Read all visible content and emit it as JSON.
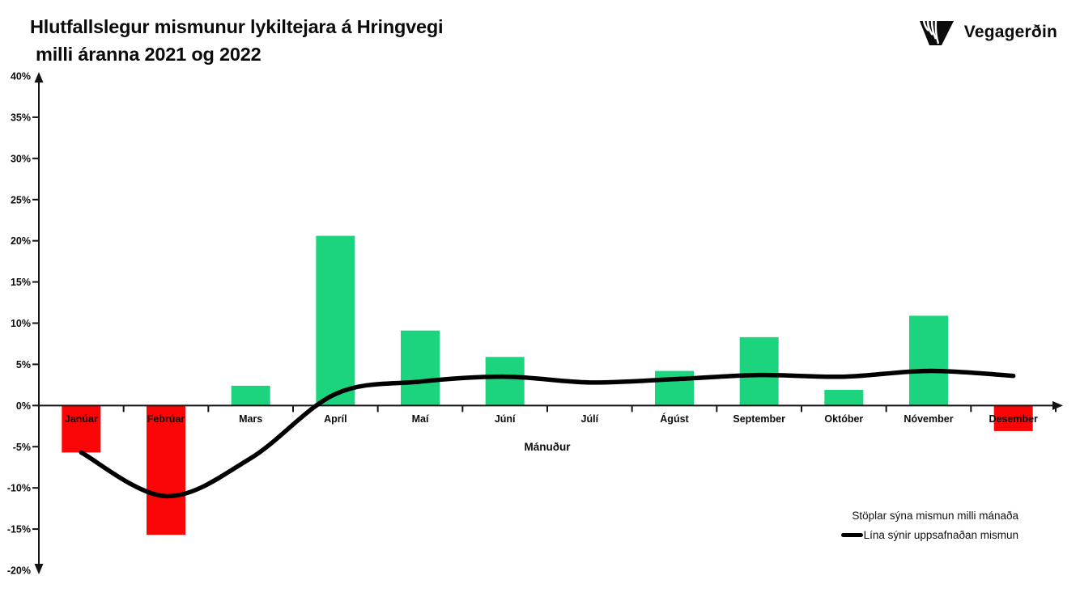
{
  "header": {
    "title_line1": "Hlutfallslegur mismunur lykiltejara á Hringvegi",
    "title_line2": "milli áranna 2021 og 2022",
    "brand": "Vegagerðin"
  },
  "legend": {
    "bars_label": "Stöplar sýna mismun milli mánaða",
    "line_label": "Lína sýnir uppsafnaðan mismun"
  },
  "colors": {
    "positive_bar": "#1BD47D",
    "negative_bar": "#FA0606",
    "line": "#000000",
    "axis": "#141414",
    "text": "#0b0b0b"
  },
  "chart_data": {
    "type": "bar",
    "title": "Hlutfallslegur mismunur lykiltejara á Hringvegi milli áranna 2021 og 2022",
    "xlabel": "Mánuður",
    "ylabel": "",
    "ylim": [
      -20,
      40
    ],
    "ytick_step": 5,
    "ytick_format": "percent",
    "grid": false,
    "legend_position": "bottom-right",
    "categories": [
      "Janúar",
      "Febrúar",
      "Mars",
      "Apríl",
      "Maí",
      "Júní",
      "Júlí",
      "Ágúst",
      "September",
      "Október",
      "Nóvember",
      "Desember"
    ],
    "series": [
      {
        "name": "Stöplar sýna mismun milli mánaða",
        "type": "bar",
        "values": [
          -5.7,
          -15.7,
          2.4,
          20.6,
          9.1,
          5.9,
          0,
          4.2,
          8.3,
          1.9,
          10.9,
          -3.1
        ]
      },
      {
        "name": "Lína sýnir uppsafnaðan mismun",
        "type": "line",
        "values": [
          -5.7,
          -11.0,
          -6.4,
          1.4,
          2.9,
          3.5,
          2.8,
          3.2,
          3.7,
          3.5,
          4.2,
          3.6
        ]
      }
    ]
  }
}
